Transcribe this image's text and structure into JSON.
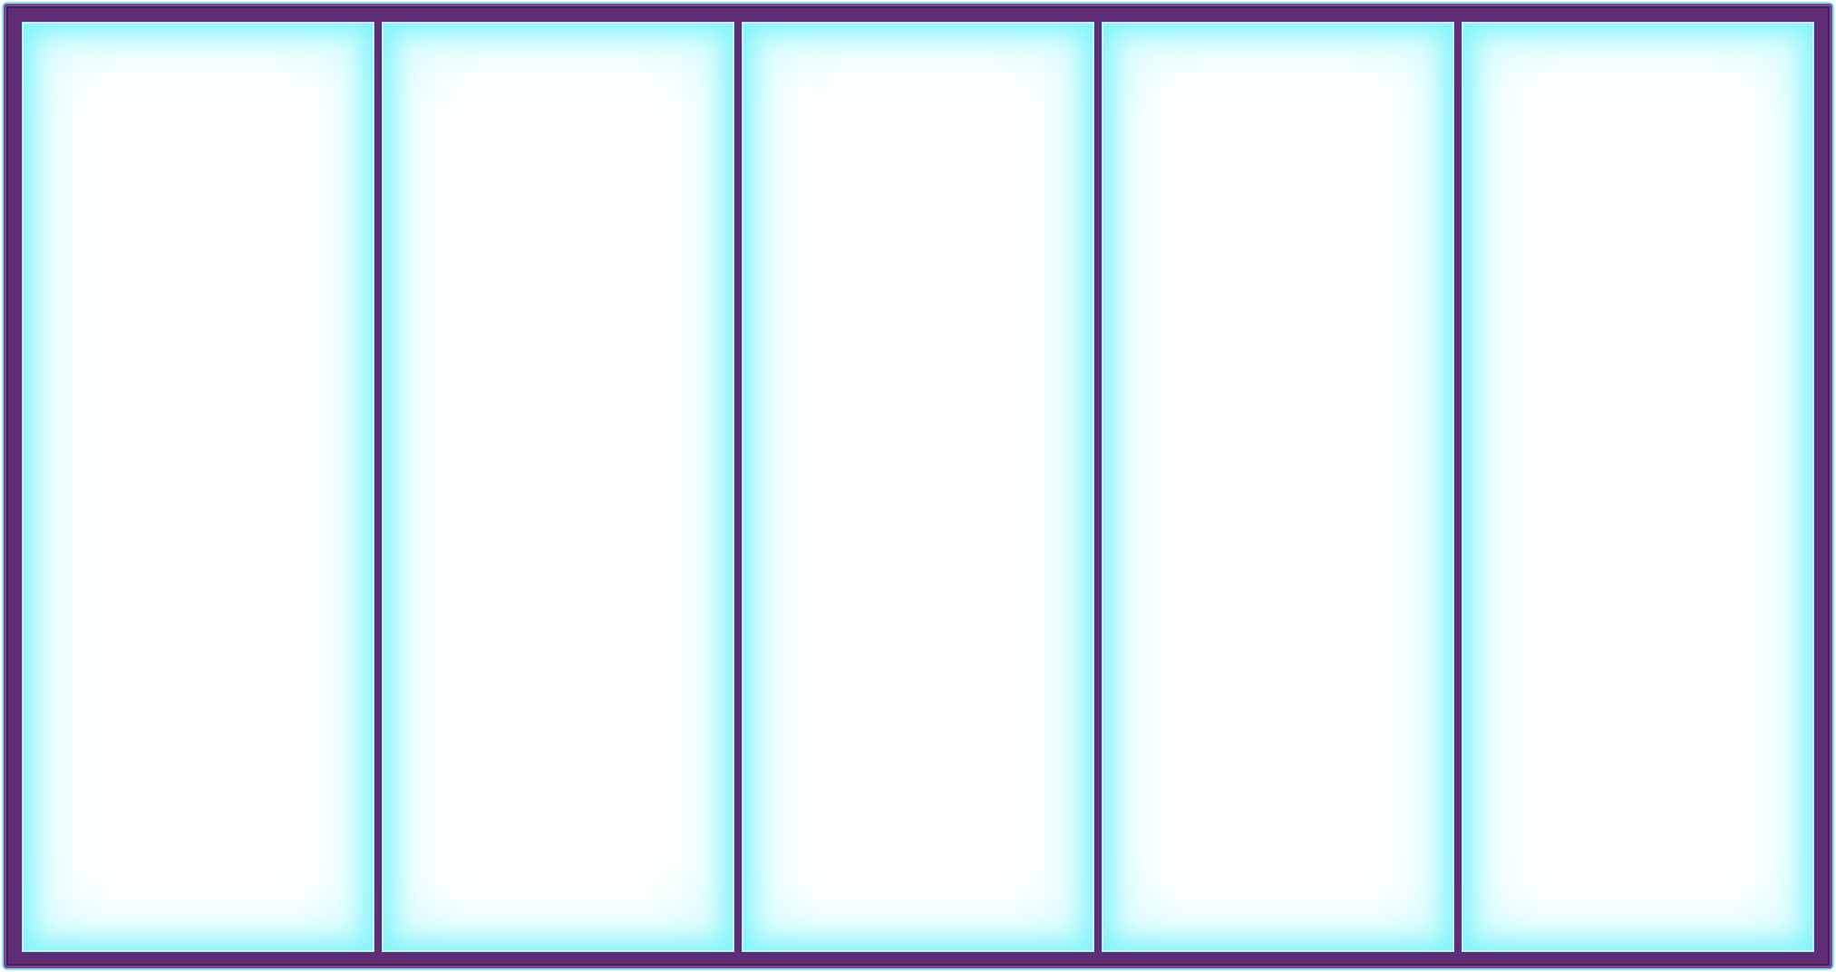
{
  "panels": [
    {
      "id": "panel-1"
    },
    {
      "id": "panel-2"
    },
    {
      "id": "panel-3"
    },
    {
      "id": "panel-4"
    },
    {
      "id": "panel-5"
    }
  ],
  "colors": {
    "frame": "#5e2d76",
    "frame_dark": "#4b1d61",
    "frame_light": "#7a4a93",
    "glow": "#7ff4fb",
    "panel_fill": "#ffffff"
  }
}
